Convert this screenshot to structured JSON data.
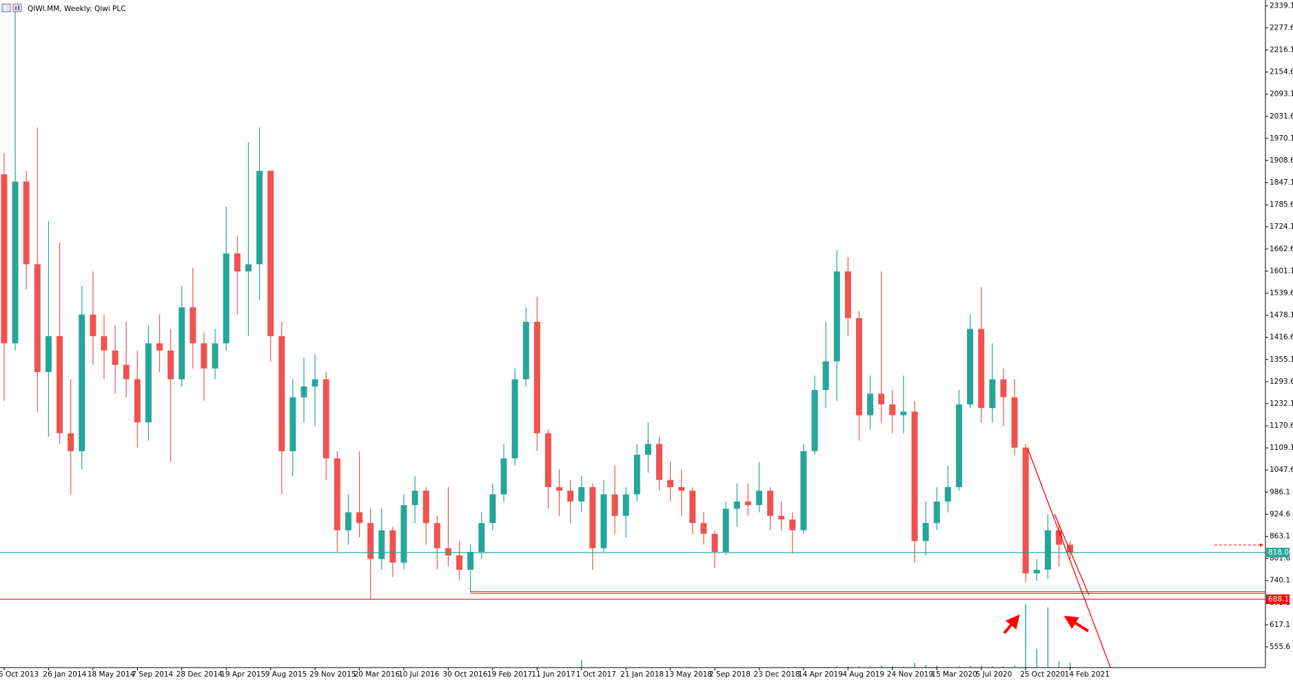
{
  "chart_data": {
    "type": "candlestick",
    "title": "QIWI.MM, Weekly:  Qiwi PLC",
    "categories": [
      "5 Oct 2013",
      null,
      null,
      null,
      "26 Jan 2014",
      null,
      null,
      null,
      "18 May 2014",
      null,
      null,
      null,
      "7 Sep 2014",
      null,
      null,
      null,
      "28 Dec 2014",
      null,
      null,
      null,
      "19 Apr 2015",
      null,
      null,
      null,
      "9 Aug 2015",
      null,
      null,
      null,
      "29 Nov 2015",
      null,
      null,
      null,
      "20 Mar 2016",
      null,
      null,
      null,
      "10 Jul 2016",
      null,
      null,
      null,
      "30 Oct 2016",
      null,
      null,
      null,
      "19 Feb 2017",
      null,
      null,
      null,
      "11 Jun 2017",
      null,
      null,
      null,
      "1 Oct 2017",
      null,
      null,
      null,
      "21 Jan 2018",
      null,
      null,
      null,
      "13 May 2018",
      null,
      null,
      null,
      "2 Sep 2018",
      null,
      null,
      null,
      "23 Dec 2018",
      null,
      null,
      null,
      "14 Apr 2019",
      null,
      null,
      null,
      "4 Aug 2019",
      null,
      null,
      null,
      "24 Nov 2019",
      null,
      null,
      null,
      "15 Mar 2020",
      null,
      null,
      null,
      "5 Jul 2020",
      null,
      null,
      null,
      "25 Oct 2020",
      null,
      null,
      null,
      "14 Feb 2021"
    ],
    "open": [
      1870,
      1400,
      1850,
      1620,
      1320,
      1420,
      1150,
      1100,
      1480,
      1420,
      1380,
      1340,
      1300,
      1180,
      1400,
      1380,
      1300,
      1500,
      1400,
      1330,
      1400,
      1650,
      1600,
      1620,
      1880,
      1420,
      1100,
      1250,
      1280,
      1300,
      1080,
      880,
      930,
      900,
      800,
      880,
      790,
      950,
      990,
      900,
      830,
      810,
      770,
      820,
      900,
      980,
      1080,
      1300,
      1460,
      1150,
      1000,
      990,
      960,
      1000,
      830,
      980,
      920,
      980,
      1090,
      1120,
      1020,
      1000,
      990,
      900,
      870,
      820,
      940,
      960,
      950,
      990,
      920,
      910,
      880,
      1100,
      1270,
      1350,
      1600,
      1470,
      1200,
      1260,
      1230,
      1200,
      1210,
      850,
      900,
      960,
      1000,
      1230,
      1440,
      1220,
      1300,
      1250,
      1110,
      760,
      770,
      880,
      840
    ],
    "high": [
      1930,
      2339,
      1880,
      2000,
      1740,
      1680,
      1300,
      1560,
      1600,
      1480,
      1450,
      1460,
      1380,
      1450,
      1480,
      1440,
      1560,
      1610,
      1430,
      1440,
      1780,
      1700,
      1960,
      2000,
      1880,
      1460,
      1300,
      1360,
      1370,
      1320,
      1100,
      980,
      1100,
      940,
      940,
      890,
      980,
      1030,
      1000,
      920,
      1000,
      850,
      840,
      930,
      1010,
      1120,
      1330,
      1500,
      1530,
      1160,
      1050,
      1020,
      1030,
      1010,
      1020,
      1060,
      1000,
      1120,
      1180,
      1140,
      1070,
      1050,
      1000,
      930,
      880,
      960,
      1010,
      1010,
      1070,
      1000,
      960,
      930,
      1120,
      1310,
      1460,
      1660,
      1640,
      1490,
      1310,
      1600,
      1270,
      1310,
      1240,
      960,
      1000,
      1060,
      1270,
      1480,
      1556,
      1400,
      1330,
      1300,
      1120,
      800,
      925,
      900,
      850
    ],
    "low": [
      1240,
      1380,
      1550,
      1210,
      1140,
      1120,
      980,
      1050,
      1340,
      1300,
      1260,
      1250,
      1110,
      1130,
      1320,
      1070,
      1280,
      1330,
      1240,
      1300,
      1380,
      1480,
      1420,
      1520,
      1350,
      980,
      1030,
      1180,
      1170,
      1020,
      820,
      840,
      860,
      690,
      770,
      750,
      770,
      900,
      840,
      770,
      780,
      740,
      707,
      800,
      880,
      960,
      1060,
      1280,
      1100,
      940,
      920,
      900,
      930,
      770,
      820,
      870,
      860,
      960,
      1040,
      990,
      960,
      920,
      870,
      840,
      775,
      810,
      890,
      920,
      930,
      880,
      880,
      815,
      870,
      1090,
      1220,
      1240,
      1420,
      1130,
      1160,
      1180,
      1150,
      1150,
      790,
      810,
      880,
      930,
      990,
      1220,
      1180,
      1180,
      1170,
      1090,
      735,
      740,
      745,
      780,
      800
    ],
    "close": [
      1400,
      1850,
      1620,
      1320,
      1420,
      1150,
      1100,
      1480,
      1420,
      1380,
      1340,
      1300,
      1180,
      1400,
      1380,
      1300,
      1500,
      1400,
      1330,
      1400,
      1650,
      1600,
      1620,
      1880,
      1420,
      1100,
      1250,
      1280,
      1300,
      1080,
      880,
      930,
      900,
      800,
      880,
      790,
      950,
      990,
      900,
      830,
      810,
      770,
      820,
      900,
      980,
      1080,
      1300,
      1460,
      1150,
      1000,
      990,
      960,
      1000,
      830,
      980,
      920,
      980,
      1090,
      1120,
      1020,
      1000,
      990,
      900,
      870,
      820,
      940,
      960,
      950,
      990,
      920,
      910,
      880,
      1100,
      1270,
      1350,
      1600,
      1470,
      1200,
      1260,
      1230,
      1200,
      1210,
      850,
      900,
      960,
      1000,
      1230,
      1440,
      1220,
      1300,
      1250,
      1110,
      760,
      770,
      880,
      840,
      818
    ],
    "volume": [
      0,
      0,
      0,
      0,
      0,
      0,
      0,
      0,
      0,
      0,
      0,
      0,
      0,
      0,
      0,
      0,
      0,
      0,
      0,
      0,
      0,
      0,
      0,
      0,
      0,
      0,
      0,
      0,
      0,
      0,
      0,
      0,
      0,
      0,
      0,
      0,
      0,
      0,
      0,
      0,
      0,
      0,
      0,
      0,
      0,
      0,
      0,
      0,
      0,
      0,
      0,
      0,
      12,
      0,
      0,
      0,
      0,
      0,
      0,
      0,
      0,
      0,
      0,
      0,
      0,
      0,
      0,
      0,
      0,
      0,
      0,
      0,
      0,
      0,
      0,
      2,
      2,
      2,
      2,
      3,
      2,
      2,
      8,
      4,
      3,
      2,
      2,
      3,
      3,
      2,
      2,
      4,
      100,
      30,
      95,
      10,
      8
    ],
    "volume_lim": [
      0,
      100
    ],
    "up_color": "#26a69a",
    "down_color": "#ef5350",
    "ylim": [
      498,
      2355
    ],
    "yticks": [
      2339.1,
      2277.6,
      2216.1,
      2154.6,
      2093.1,
      2031.6,
      1970.1,
      1908.6,
      1847.1,
      1785.6,
      1724.1,
      1662.6,
      1601.1,
      1539.6,
      1478.1,
      1416.6,
      1355.1,
      1293.6,
      1232.1,
      1170.6,
      1109.1,
      1047.6,
      986.1,
      924.6,
      863.1,
      801.6,
      740.1,
      678.6,
      617.1,
      555.6
    ],
    "levels": [
      {
        "value": 818.0,
        "label": "818.0",
        "color": "#26a69a"
      },
      {
        "value": 688.1,
        "label": "688.1",
        "color": "#ff0000"
      }
    ],
    "hlines": [
      {
        "value": 707,
        "start": 42,
        "color": "#ff0000"
      }
    ],
    "trendlines": [
      {
        "x": [
          92.2,
          99.7
        ],
        "y": [
          1106,
          493
        ],
        "color": "#ff0000"
      },
      {
        "x": [
          94.6,
          97.7
        ],
        "y": [
          925,
          700
        ],
        "color": "#ff0000"
      }
    ]
  }
}
